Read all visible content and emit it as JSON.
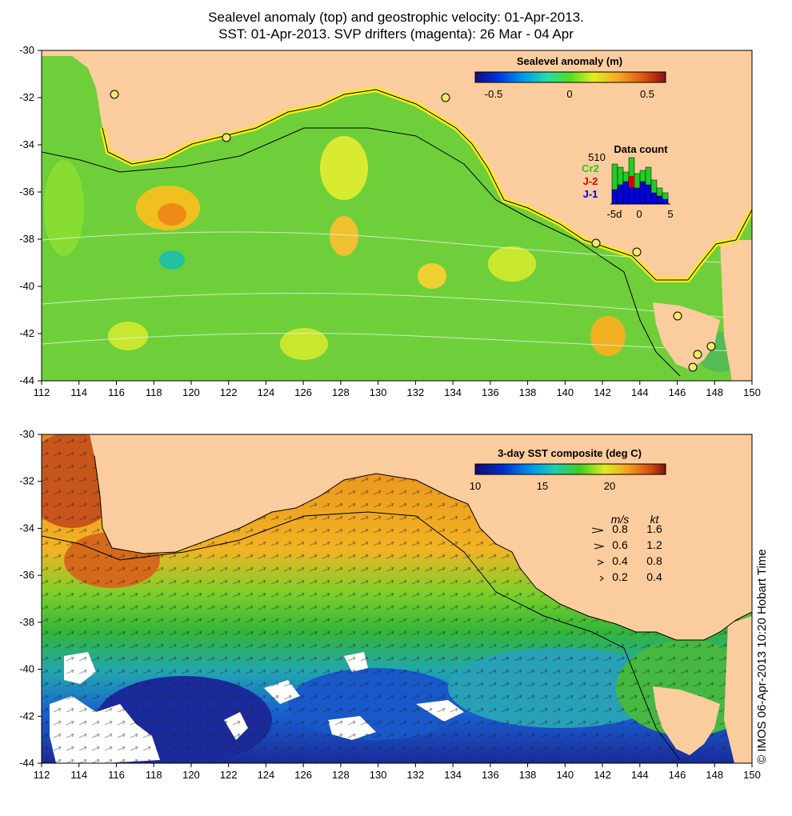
{
  "title_line1": "Sealevel anomaly (top) and geostrophic velocity: 01-Apr-2013.",
  "title_line2": "SST: 01-Apr-2013. SVP drifters (magenta): 26 Mar - 04 Apr",
  "side_caption": "© IMOS 06-Apr-2013 10:20 Hobart Time",
  "axes": {
    "lon_ticks": [
      "112",
      "114",
      "116",
      "118",
      "120",
      "122",
      "124",
      "126",
      "128",
      "130",
      "132",
      "134",
      "136",
      "138",
      "140",
      "142",
      "144",
      "146",
      "148",
      "150"
    ],
    "lat_ticks": [
      "-30",
      "-32",
      "-34",
      "-36",
      "-38",
      "-40",
      "-42",
      "-44"
    ]
  },
  "top_map": {
    "colorbar_title": "Sealevel anomaly (m)",
    "colorbar_ticks": [
      "-0.5",
      "0",
      "0.5"
    ],
    "data_count": {
      "label": "Data count",
      "max_label": "510",
      "sat_labels": [
        "Cr2",
        "J-2",
        "J-1"
      ],
      "sat_colors": [
        "#22cc22",
        "#dd0000",
        "#0000dd"
      ],
      "x_ticks": [
        "-5d",
        "0",
        "5"
      ]
    }
  },
  "bottom_map": {
    "colorbar_title": "3-day SST composite (deg C)",
    "colorbar_ticks": [
      "10",
      "15",
      "20"
    ],
    "velocity_legend": {
      "units": [
        "m/s",
        "kt"
      ],
      "rows": [
        [
          "0.8",
          "1.6"
        ],
        [
          "0.6",
          "1.2"
        ],
        [
          "0.4",
          "0.8"
        ],
        [
          "0.2",
          "0.4"
        ]
      ]
    }
  },
  "colors": {
    "land": "#fbcc9d",
    "frame": "#000000"
  }
}
